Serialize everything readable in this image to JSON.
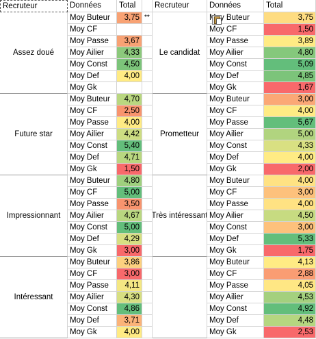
{
  "headers": {
    "left": {
      "recruteur": "Recruteur",
      "donnees": "Données",
      "total": "Total"
    },
    "right": {
      "recruteur": "Recruteur",
      "donnees": "Données",
      "total": "Total"
    }
  },
  "note": "**",
  "left_groups": [
    {
      "recruteur": "Assez doué",
      "rows": [
        {
          "label": "Moy Buteur",
          "value": "3,75",
          "color": "#f8a274"
        },
        {
          "label": "Moy CF",
          "value": "",
          "color": "#ffffff"
        },
        {
          "label": "Moy Passe",
          "value": "3,67",
          "color": "#f8a274"
        },
        {
          "label": "Moy Ailier",
          "value": "4,33",
          "color": "#8cc97c"
        },
        {
          "label": "Moy Const",
          "value": "4,50",
          "color": "#7cc47a"
        },
        {
          "label": "Moy Def",
          "value": "4,00",
          "color": "#ffeb84"
        },
        {
          "label": "Moy Gk",
          "value": "",
          "color": "#ffffff"
        }
      ]
    },
    {
      "recruteur": "Future star",
      "rows": [
        {
          "label": "Moy Buteur",
          "value": "4,70",
          "color": "#b9d780"
        },
        {
          "label": "Moy CF",
          "value": "2,50",
          "color": "#f8946e"
        },
        {
          "label": "Moy Passe",
          "value": "4,00",
          "color": "#ffeb84"
        },
        {
          "label": "Moy Ailier",
          "value": "4,42",
          "color": "#cddd82"
        },
        {
          "label": "Moy Const",
          "value": "5,40",
          "color": "#63be7b"
        },
        {
          "label": "Moy Def",
          "value": "4,71",
          "color": "#b9d780"
        },
        {
          "label": "Moy Gk",
          "value": "1,50",
          "color": "#f8696b"
        }
      ]
    },
    {
      "recruteur": "Impressionnant",
      "rows": [
        {
          "label": "Moy Buteur",
          "value": "4,80",
          "color": "#9fd07e"
        },
        {
          "label": "Moy CF",
          "value": "5,00",
          "color": "#63be7b"
        },
        {
          "label": "Moy Passe",
          "value": "3,50",
          "color": "#f8946e"
        },
        {
          "label": "Moy Ailier",
          "value": "4,67",
          "color": "#b9d780"
        },
        {
          "label": "Moy Const",
          "value": "5,00",
          "color": "#63be7b"
        },
        {
          "label": "Moy Def",
          "value": "4,29",
          "color": "#d7df82"
        },
        {
          "label": "Moy Gk",
          "value": "3,00",
          "color": "#f8696b"
        }
      ]
    },
    {
      "recruteur": "Intéressant",
      "rows": [
        {
          "label": "Moy Buteur",
          "value": "3,86",
          "color": "#fdd17f"
        },
        {
          "label": "Moy CF",
          "value": "3,00",
          "color": "#f8696b"
        },
        {
          "label": "Moy Passe",
          "value": "4,11",
          "color": "#f4e783"
        },
        {
          "label": "Moy Ailier",
          "value": "4,30",
          "color": "#d7df82"
        },
        {
          "label": "Moy Const",
          "value": "4,86",
          "color": "#63be7b"
        },
        {
          "label": "Moy Def",
          "value": "3,71",
          "color": "#fbb379"
        },
        {
          "label": "Moy Gk",
          "value": "4,00",
          "color": "#ffeb84"
        }
      ]
    }
  ],
  "right_groups": [
    {
      "recruteur": "Le candidat",
      "rows": [
        {
          "label": "Moy Buteur",
          "value": "3,75",
          "color": "#fedc81"
        },
        {
          "label": "Moy CF",
          "value": "1,50",
          "color": "#f8696b"
        },
        {
          "label": "Moy Passe",
          "value": "3,89",
          "color": "#ffeb84"
        },
        {
          "label": "Moy Ailier",
          "value": "4,80",
          "color": "#85c87c"
        },
        {
          "label": "Moy Const",
          "value": "5,09",
          "color": "#63be7b"
        },
        {
          "label": "Moy Def",
          "value": "4,85",
          "color": "#7cc47a"
        },
        {
          "label": "Moy Gk",
          "value": "1,67",
          "color": "#f8696b"
        }
      ]
    },
    {
      "recruteur": "Prometteur",
      "rows": [
        {
          "label": "Moy Buteur",
          "value": "3,00",
          "color": "#fba876"
        },
        {
          "label": "Moy CF",
          "value": "4,00",
          "color": "#ffeb84"
        },
        {
          "label": "Moy Passe",
          "value": "5,67",
          "color": "#63be7b"
        },
        {
          "label": "Moy Ailier",
          "value": "5,00",
          "color": "#b1d47f"
        },
        {
          "label": "Moy Const",
          "value": "4,33",
          "color": "#d9e082"
        },
        {
          "label": "Moy Def",
          "value": "4,00",
          "color": "#ffeb84"
        },
        {
          "label": "Moy Gk",
          "value": "2,00",
          "color": "#f8696b"
        }
      ]
    },
    {
      "recruteur": "Très intéressant",
      "rows": [
        {
          "label": "Moy Buteur",
          "value": "4,00",
          "color": "#ffe283"
        },
        {
          "label": "Moy CF",
          "value": "3,00",
          "color": "#fdc17c"
        },
        {
          "label": "Moy Passe",
          "value": "4,00",
          "color": "#ffe283"
        },
        {
          "label": "Moy Ailier",
          "value": "4,50",
          "color": "#c7db81"
        },
        {
          "label": "Moy Const",
          "value": "3,00",
          "color": "#fdc17c"
        },
        {
          "label": "Moy Def",
          "value": "5,33",
          "color": "#63be7b"
        },
        {
          "label": "Moy Gk",
          "value": "1,75",
          "color": "#f8696b"
        }
      ]
    },
    {
      "recruteur": "",
      "rows": [
        {
          "label": "Moy Buteur",
          "value": "4,13",
          "color": "#ffeb84"
        },
        {
          "label": "Moy CF",
          "value": "2,88",
          "color": "#fa9d73"
        },
        {
          "label": "Moy Passe",
          "value": "4,05",
          "color": "#ffe784"
        },
        {
          "label": "Moy Ailier",
          "value": "4,53",
          "color": "#a4d07e"
        },
        {
          "label": "Moy Const",
          "value": "4,92",
          "color": "#63be7b"
        },
        {
          "label": "Moy Def",
          "value": "4,48",
          "color": "#b5d680"
        },
        {
          "label": "Moy Gk",
          "value": "2,53",
          "color": "#f8696b"
        }
      ]
    }
  ]
}
